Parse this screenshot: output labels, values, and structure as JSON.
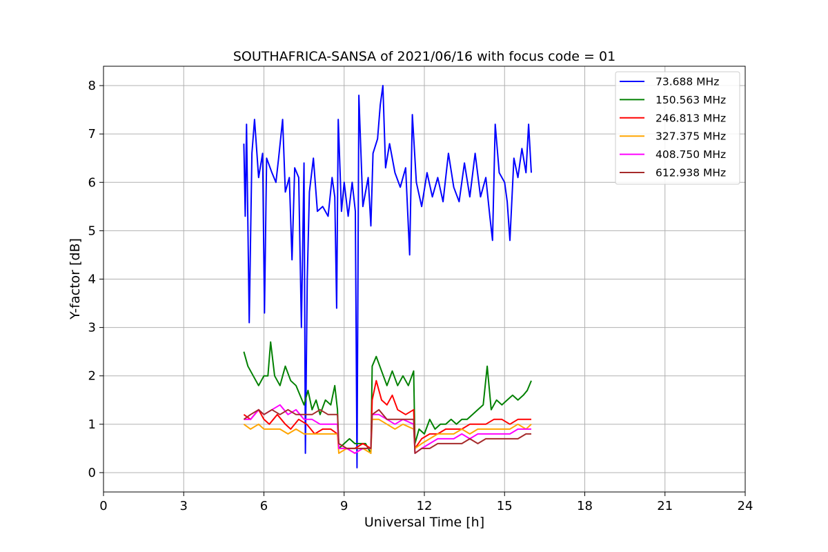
{
  "chart_data": {
    "type": "line",
    "title": "SOUTHAFRICA-SANSA of 2021/06/16 with focus code = 01",
    "xlabel": "Universal Time [h]",
    "ylabel": "Y-factor [dB]",
    "xlim": [
      0,
      24
    ],
    "ylim": [
      -0.4,
      8.4
    ],
    "xticks": [
      0,
      3,
      6,
      9,
      12,
      15,
      18,
      21,
      24
    ],
    "yticks": [
      0,
      1,
      2,
      3,
      4,
      5,
      6,
      7,
      8
    ],
    "grid": true,
    "legend_position": "top-right",
    "series": [
      {
        "name": " 73.688 MHz",
        "color": "#0000ff",
        "points": [
          [
            5.25,
            6.8
          ],
          [
            5.3,
            5.3
          ],
          [
            5.35,
            7.2
          ],
          [
            5.45,
            3.1
          ],
          [
            5.55,
            6.6
          ],
          [
            5.65,
            7.3
          ],
          [
            5.8,
            6.1
          ],
          [
            5.95,
            6.6
          ],
          [
            6.02,
            3.3
          ],
          [
            6.1,
            6.5
          ],
          [
            6.3,
            6.2
          ],
          [
            6.45,
            6.0
          ],
          [
            6.55,
            6.5
          ],
          [
            6.7,
            7.3
          ],
          [
            6.8,
            5.8
          ],
          [
            6.95,
            6.1
          ],
          [
            7.05,
            4.4
          ],
          [
            7.15,
            6.3
          ],
          [
            7.3,
            6.1
          ],
          [
            7.4,
            3.0
          ],
          [
            7.5,
            6.4
          ],
          [
            7.55,
            0.4
          ],
          [
            7.62,
            4.0
          ],
          [
            7.7,
            5.8
          ],
          [
            7.85,
            6.5
          ],
          [
            8.0,
            5.4
          ],
          [
            8.2,
            5.5
          ],
          [
            8.4,
            5.3
          ],
          [
            8.55,
            6.1
          ],
          [
            8.65,
            5.7
          ],
          [
            8.72,
            3.4
          ],
          [
            8.78,
            7.3
          ],
          [
            8.9,
            5.4
          ],
          [
            9.0,
            6.0
          ],
          [
            9.15,
            5.3
          ],
          [
            9.3,
            6.0
          ],
          [
            9.42,
            5.4
          ],
          [
            9.48,
            0.1
          ],
          [
            9.55,
            7.8
          ],
          [
            9.7,
            5.5
          ],
          [
            9.9,
            6.1
          ],
          [
            10.0,
            5.1
          ],
          [
            10.08,
            6.6
          ],
          [
            10.25,
            6.9
          ],
          [
            10.35,
            7.6
          ],
          [
            10.45,
            8.0
          ],
          [
            10.55,
            6.3
          ],
          [
            10.7,
            6.8
          ],
          [
            10.9,
            6.2
          ],
          [
            11.1,
            5.9
          ],
          [
            11.3,
            6.3
          ],
          [
            11.45,
            4.5
          ],
          [
            11.55,
            7.4
          ],
          [
            11.7,
            6.0
          ],
          [
            11.9,
            5.5
          ],
          [
            12.1,
            6.2
          ],
          [
            12.3,
            5.7
          ],
          [
            12.5,
            6.1
          ],
          [
            12.7,
            5.6
          ],
          [
            12.9,
            6.6
          ],
          [
            13.1,
            5.9
          ],
          [
            13.3,
            5.6
          ],
          [
            13.5,
            6.4
          ],
          [
            13.7,
            5.7
          ],
          [
            13.9,
            6.6
          ],
          [
            14.1,
            5.7
          ],
          [
            14.3,
            6.1
          ],
          [
            14.45,
            5.3
          ],
          [
            14.55,
            4.8
          ],
          [
            14.65,
            7.2
          ],
          [
            14.8,
            6.2
          ],
          [
            15.0,
            6.0
          ],
          [
            15.1,
            5.6
          ],
          [
            15.2,
            4.8
          ],
          [
            15.35,
            6.5
          ],
          [
            15.5,
            6.1
          ],
          [
            15.65,
            6.7
          ],
          [
            15.8,
            6.2
          ],
          [
            15.9,
            7.2
          ],
          [
            16.0,
            6.2
          ]
        ]
      },
      {
        "name": "150.563 MHz",
        "color": "#008000",
        "points": [
          [
            5.25,
            2.5
          ],
          [
            5.4,
            2.2
          ],
          [
            5.6,
            2.0
          ],
          [
            5.8,
            1.8
          ],
          [
            6.0,
            2.0
          ],
          [
            6.15,
            2.0
          ],
          [
            6.25,
            2.7
          ],
          [
            6.4,
            2.0
          ],
          [
            6.6,
            1.8
          ],
          [
            6.8,
            2.2
          ],
          [
            7.0,
            1.9
          ],
          [
            7.2,
            1.8
          ],
          [
            7.35,
            1.6
          ],
          [
            7.5,
            1.4
          ],
          [
            7.65,
            1.7
          ],
          [
            7.8,
            1.3
          ],
          [
            7.95,
            1.5
          ],
          [
            8.1,
            1.2
          ],
          [
            8.3,
            1.5
          ],
          [
            8.5,
            1.4
          ],
          [
            8.65,
            1.8
          ],
          [
            8.75,
            1.3
          ],
          [
            8.8,
            0.5
          ],
          [
            9.0,
            0.6
          ],
          [
            9.2,
            0.7
          ],
          [
            9.4,
            0.6
          ],
          [
            9.6,
            0.6
          ],
          [
            9.8,
            0.6
          ],
          [
            10.0,
            0.4
          ],
          [
            10.05,
            2.2
          ],
          [
            10.2,
            2.4
          ],
          [
            10.4,
            2.1
          ],
          [
            10.6,
            1.8
          ],
          [
            10.8,
            2.1
          ],
          [
            11.0,
            1.8
          ],
          [
            11.2,
            2.0
          ],
          [
            11.4,
            1.8
          ],
          [
            11.6,
            2.1
          ],
          [
            11.65,
            0.6
          ],
          [
            11.8,
            0.9
          ],
          [
            12.0,
            0.8
          ],
          [
            12.2,
            1.1
          ],
          [
            12.4,
            0.9
          ],
          [
            12.6,
            1.0
          ],
          [
            12.8,
            1.0
          ],
          [
            13.0,
            1.1
          ],
          [
            13.2,
            1.0
          ],
          [
            13.4,
            1.1
          ],
          [
            13.6,
            1.1
          ],
          [
            13.8,
            1.2
          ],
          [
            14.0,
            1.3
          ],
          [
            14.2,
            1.4
          ],
          [
            14.35,
            2.2
          ],
          [
            14.5,
            1.3
          ],
          [
            14.7,
            1.5
          ],
          [
            14.9,
            1.4
          ],
          [
            15.1,
            1.5
          ],
          [
            15.3,
            1.6
          ],
          [
            15.5,
            1.5
          ],
          [
            15.7,
            1.6
          ],
          [
            15.85,
            1.7
          ],
          [
            16.0,
            1.9
          ]
        ]
      },
      {
        "name": "246.813 MHz",
        "color": "#ff0000",
        "points": [
          [
            5.25,
            1.2
          ],
          [
            5.5,
            1.1
          ],
          [
            5.8,
            1.3
          ],
          [
            6.0,
            1.1
          ],
          [
            6.2,
            1.0
          ],
          [
            6.5,
            1.2
          ],
          [
            6.8,
            1.0
          ],
          [
            7.0,
            0.9
          ],
          [
            7.3,
            1.1
          ],
          [
            7.6,
            1.0
          ],
          [
            7.9,
            0.8
          ],
          [
            8.2,
            0.9
          ],
          [
            8.5,
            0.9
          ],
          [
            8.75,
            0.8
          ],
          [
            8.8,
            0.5
          ],
          [
            9.1,
            0.5
          ],
          [
            9.4,
            0.5
          ],
          [
            9.7,
            0.6
          ],
          [
            10.0,
            0.5
          ],
          [
            10.05,
            1.5
          ],
          [
            10.2,
            1.9
          ],
          [
            10.4,
            1.5
          ],
          [
            10.6,
            1.4
          ],
          [
            10.8,
            1.6
          ],
          [
            11.0,
            1.3
          ],
          [
            11.3,
            1.2
          ],
          [
            11.6,
            1.3
          ],
          [
            11.65,
            0.5
          ],
          [
            11.9,
            0.7
          ],
          [
            12.2,
            0.8
          ],
          [
            12.5,
            0.8
          ],
          [
            12.8,
            0.9
          ],
          [
            13.1,
            0.9
          ],
          [
            13.4,
            0.9
          ],
          [
            13.7,
            1.0
          ],
          [
            14.0,
            1.0
          ],
          [
            14.3,
            1.0
          ],
          [
            14.6,
            1.1
          ],
          [
            14.9,
            1.1
          ],
          [
            15.2,
            1.0
          ],
          [
            15.5,
            1.1
          ],
          [
            15.8,
            1.1
          ],
          [
            16.0,
            1.1
          ]
        ]
      },
      {
        "name": "327.375 MHz",
        "color": "#ffa500",
        "points": [
          [
            5.25,
            1.0
          ],
          [
            5.5,
            0.9
          ],
          [
            5.8,
            1.0
          ],
          [
            6.0,
            0.9
          ],
          [
            6.3,
            0.9
          ],
          [
            6.6,
            0.9
          ],
          [
            6.9,
            0.8
          ],
          [
            7.2,
            0.9
          ],
          [
            7.5,
            0.8
          ],
          [
            7.8,
            0.8
          ],
          [
            8.1,
            0.8
          ],
          [
            8.4,
            0.8
          ],
          [
            8.75,
            0.8
          ],
          [
            8.8,
            0.4
          ],
          [
            9.1,
            0.5
          ],
          [
            9.4,
            0.4
          ],
          [
            9.7,
            0.5
          ],
          [
            10.0,
            0.4
          ],
          [
            10.05,
            1.1
          ],
          [
            10.3,
            1.1
          ],
          [
            10.6,
            1.0
          ],
          [
            10.9,
            0.9
          ],
          [
            11.2,
            1.0
          ],
          [
            11.6,
            0.9
          ],
          [
            11.65,
            0.5
          ],
          [
            11.9,
            0.6
          ],
          [
            12.2,
            0.7
          ],
          [
            12.5,
            0.8
          ],
          [
            12.8,
            0.8
          ],
          [
            13.1,
            0.8
          ],
          [
            13.4,
            0.9
          ],
          [
            13.7,
            0.8
          ],
          [
            14.0,
            0.9
          ],
          [
            14.3,
            0.9
          ],
          [
            14.6,
            0.9
          ],
          [
            14.9,
            0.9
          ],
          [
            15.2,
            0.9
          ],
          [
            15.5,
            1.0
          ],
          [
            15.8,
            0.9
          ],
          [
            16.0,
            1.0
          ]
        ]
      },
      {
        "name": "408.750 MHz",
        "color": "#ff00ff",
        "points": [
          [
            5.25,
            1.1
          ],
          [
            5.5,
            1.1
          ],
          [
            5.8,
            1.3
          ],
          [
            6.0,
            1.2
          ],
          [
            6.3,
            1.3
          ],
          [
            6.6,
            1.4
          ],
          [
            6.9,
            1.2
          ],
          [
            7.2,
            1.3
          ],
          [
            7.5,
            1.1
          ],
          [
            7.8,
            1.1
          ],
          [
            8.1,
            1.0
          ],
          [
            8.4,
            1.0
          ],
          [
            8.75,
            1.0
          ],
          [
            8.8,
            0.5
          ],
          [
            9.1,
            0.5
          ],
          [
            9.4,
            0.4
          ],
          [
            9.7,
            0.5
          ],
          [
            10.0,
            0.5
          ],
          [
            10.05,
            1.2
          ],
          [
            10.3,
            1.2
          ],
          [
            10.6,
            1.1
          ],
          [
            10.9,
            1.0
          ],
          [
            11.2,
            1.1
          ],
          [
            11.6,
            1.0
          ],
          [
            11.65,
            0.4
          ],
          [
            11.9,
            0.5
          ],
          [
            12.2,
            0.6
          ],
          [
            12.5,
            0.7
          ],
          [
            12.8,
            0.7
          ],
          [
            13.1,
            0.7
          ],
          [
            13.4,
            0.8
          ],
          [
            13.7,
            0.7
          ],
          [
            14.0,
            0.8
          ],
          [
            14.3,
            0.8
          ],
          [
            14.6,
            0.8
          ],
          [
            14.9,
            0.8
          ],
          [
            15.2,
            0.8
          ],
          [
            15.5,
            0.9
          ],
          [
            15.8,
            0.9
          ],
          [
            16.0,
            0.9
          ]
        ]
      },
      {
        "name": "612.938 MHz",
        "color": "#a52a2a",
        "points": [
          [
            5.25,
            1.1
          ],
          [
            5.5,
            1.2
          ],
          [
            5.8,
            1.3
          ],
          [
            6.0,
            1.2
          ],
          [
            6.3,
            1.3
          ],
          [
            6.6,
            1.2
          ],
          [
            6.9,
            1.3
          ],
          [
            7.2,
            1.2
          ],
          [
            7.5,
            1.2
          ],
          [
            7.8,
            1.2
          ],
          [
            8.1,
            1.3
          ],
          [
            8.4,
            1.2
          ],
          [
            8.75,
            1.2
          ],
          [
            8.8,
            0.6
          ],
          [
            9.1,
            0.5
          ],
          [
            9.4,
            0.5
          ],
          [
            9.7,
            0.5
          ],
          [
            10.0,
            0.5
          ],
          [
            10.05,
            1.2
          ],
          [
            10.3,
            1.3
          ],
          [
            10.6,
            1.1
          ],
          [
            10.9,
            1.1
          ],
          [
            11.2,
            1.1
          ],
          [
            11.6,
            1.1
          ],
          [
            11.65,
            0.4
          ],
          [
            11.9,
            0.5
          ],
          [
            12.2,
            0.5
          ],
          [
            12.5,
            0.6
          ],
          [
            12.8,
            0.6
          ],
          [
            13.1,
            0.6
          ],
          [
            13.4,
            0.6
          ],
          [
            13.7,
            0.7
          ],
          [
            14.0,
            0.6
          ],
          [
            14.3,
            0.7
          ],
          [
            14.6,
            0.7
          ],
          [
            14.9,
            0.7
          ],
          [
            15.2,
            0.7
          ],
          [
            15.5,
            0.7
          ],
          [
            15.8,
            0.8
          ],
          [
            16.0,
            0.8
          ]
        ]
      }
    ]
  }
}
